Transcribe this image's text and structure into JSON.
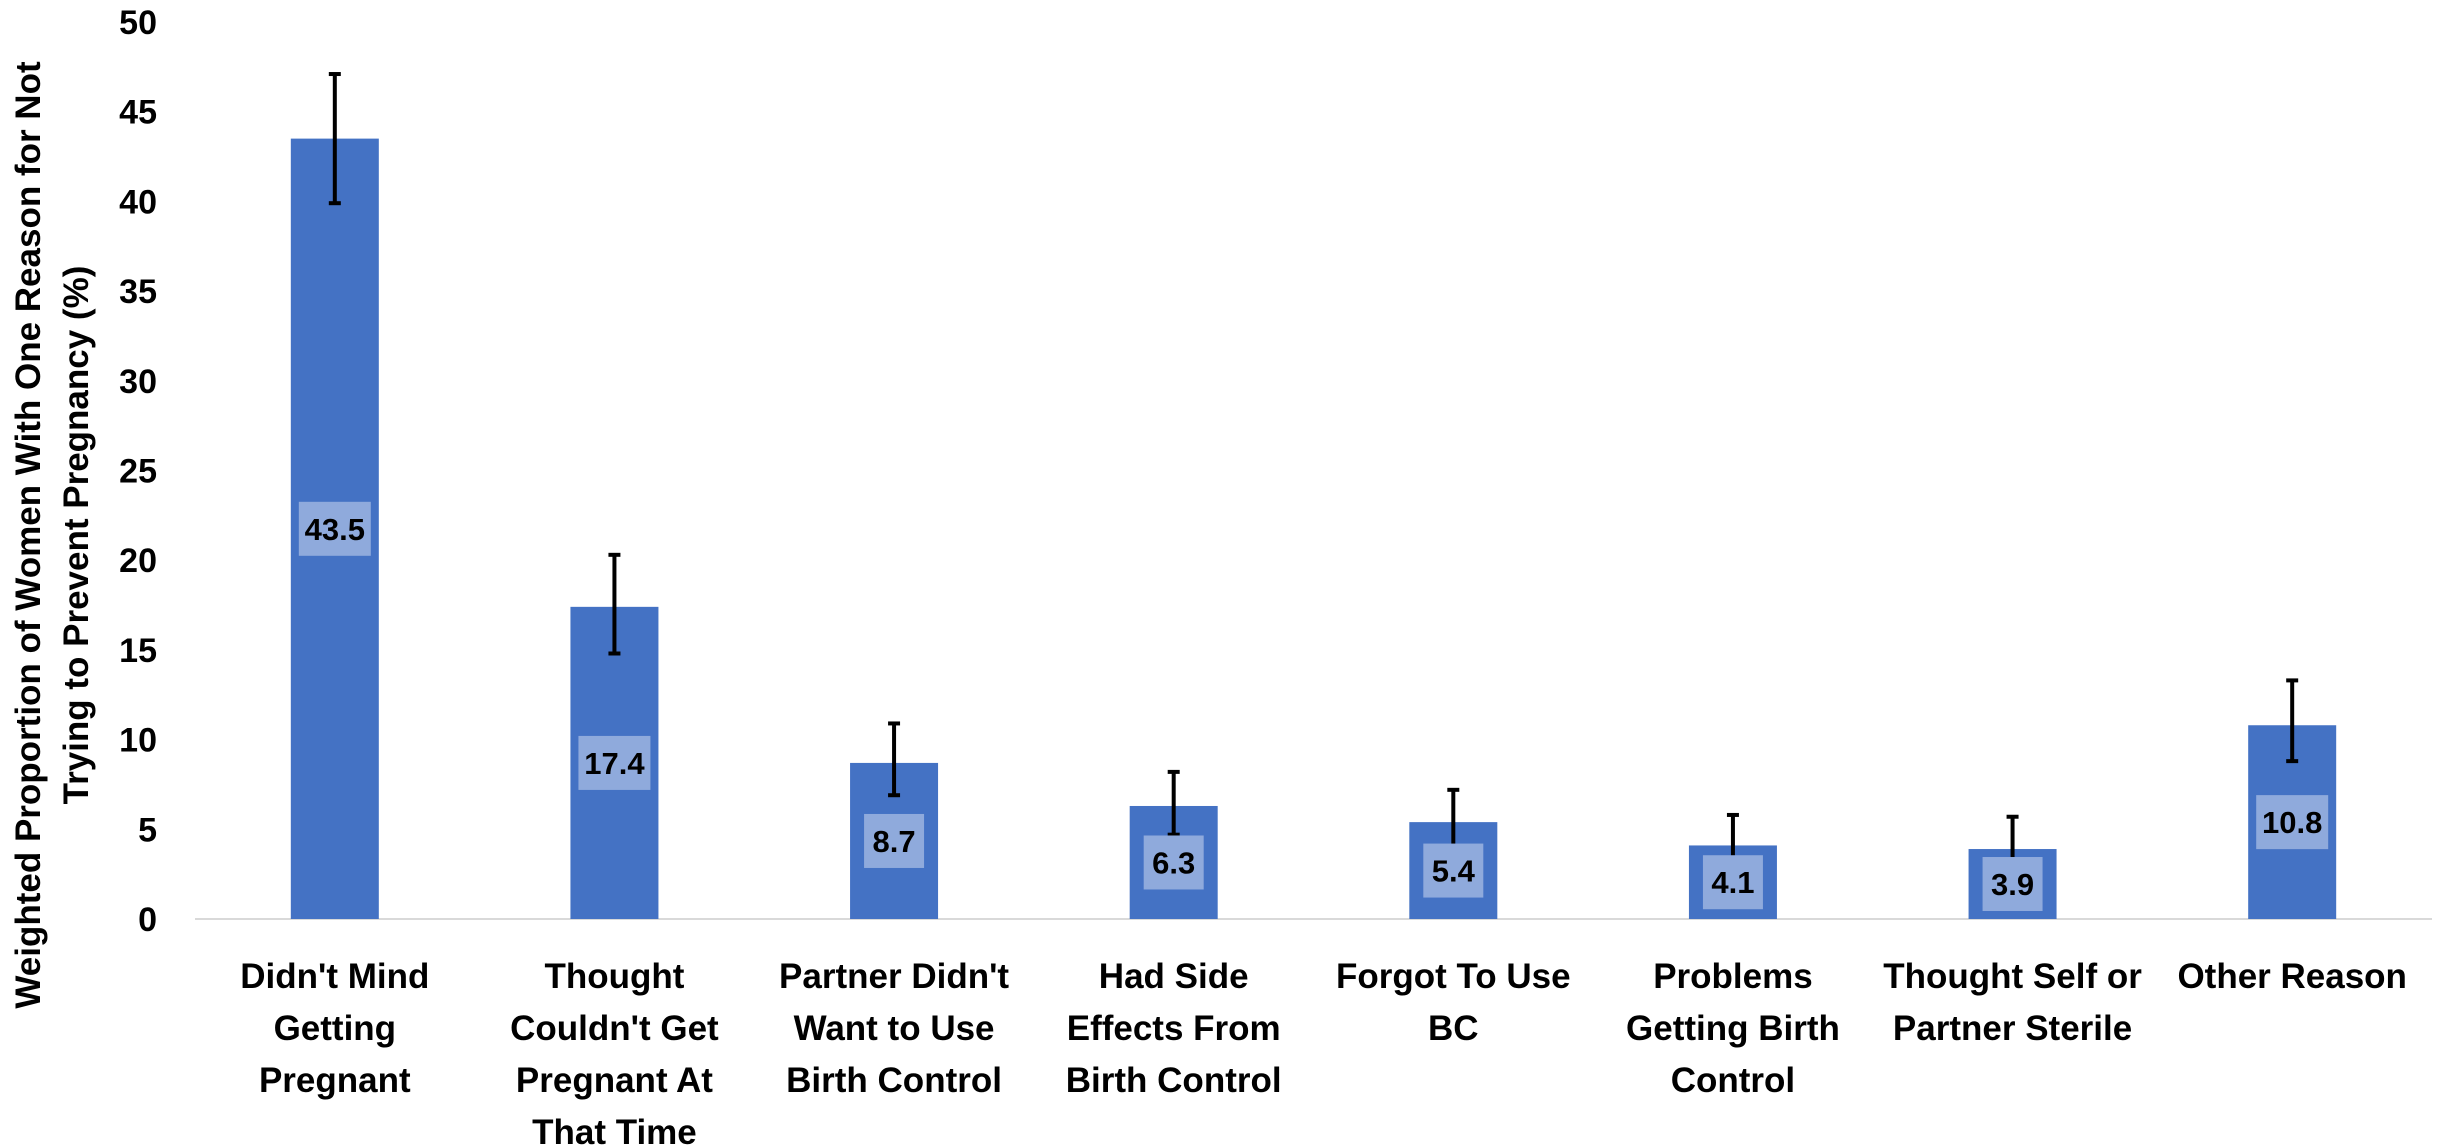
{
  "chart_data": {
    "type": "bar",
    "title": "",
    "xlabel": "",
    "ylabel": "Weighted Proportion of Women With One Reason for Not Trying to Prevent Pregnancy (%)",
    "ylabel_lines": [
      "Weighted Proportion of Women With One Reason for Not",
      "Trying to Prevent Pregnancy (%)"
    ],
    "ylim": [
      0,
      50
    ],
    "yticks": [
      0,
      5,
      10,
      15,
      20,
      25,
      30,
      35,
      40,
      45,
      50
    ],
    "grid": false,
    "legend": "none",
    "bar_color": "#4472C4",
    "label_box_color": "#8FAADC",
    "error_bar_color": "#000000",
    "categories": [
      "Didn't Mind Getting Pregnant",
      "Thought Couldn't Get Pregnant At That Time",
      "Partner Didn't Want to Use Birth Control",
      "Had Side Effects From Birth Control",
      "Forgot To Use BC",
      "Problems Getting Birth Control",
      "Thought Self or Partner Sterile",
      "Other Reason"
    ],
    "category_lines": [
      [
        "Didn't Mind",
        "Getting",
        "Pregnant"
      ],
      [
        "Thought",
        "Couldn't Get",
        "Pregnant At",
        "That Time"
      ],
      [
        "Partner Didn't",
        "Want to Use",
        "Birth Control"
      ],
      [
        "Had Side",
        "Effects From",
        "Birth Control"
      ],
      [
        "Forgot To Use",
        "BC"
      ],
      [
        "Problems",
        "Getting Birth",
        "Control"
      ],
      [
        "Thought Self or",
        "Partner Sterile"
      ],
      [
        "Other Reason"
      ]
    ],
    "values": [
      43.5,
      17.4,
      8.7,
      6.3,
      5.4,
      4.1,
      3.9,
      10.8
    ],
    "data_labels": [
      "43.5",
      "17.4",
      "8.7",
      "6.3",
      "5.4",
      "4.1",
      "3.9",
      "10.8"
    ],
    "error_low": [
      39.9,
      14.8,
      6.9,
      4.7,
      4.0,
      2.9,
      2.7,
      8.8
    ],
    "error_high": [
      47.1,
      20.3,
      10.9,
      8.2,
      7.2,
      5.8,
      5.7,
      13.3
    ]
  }
}
